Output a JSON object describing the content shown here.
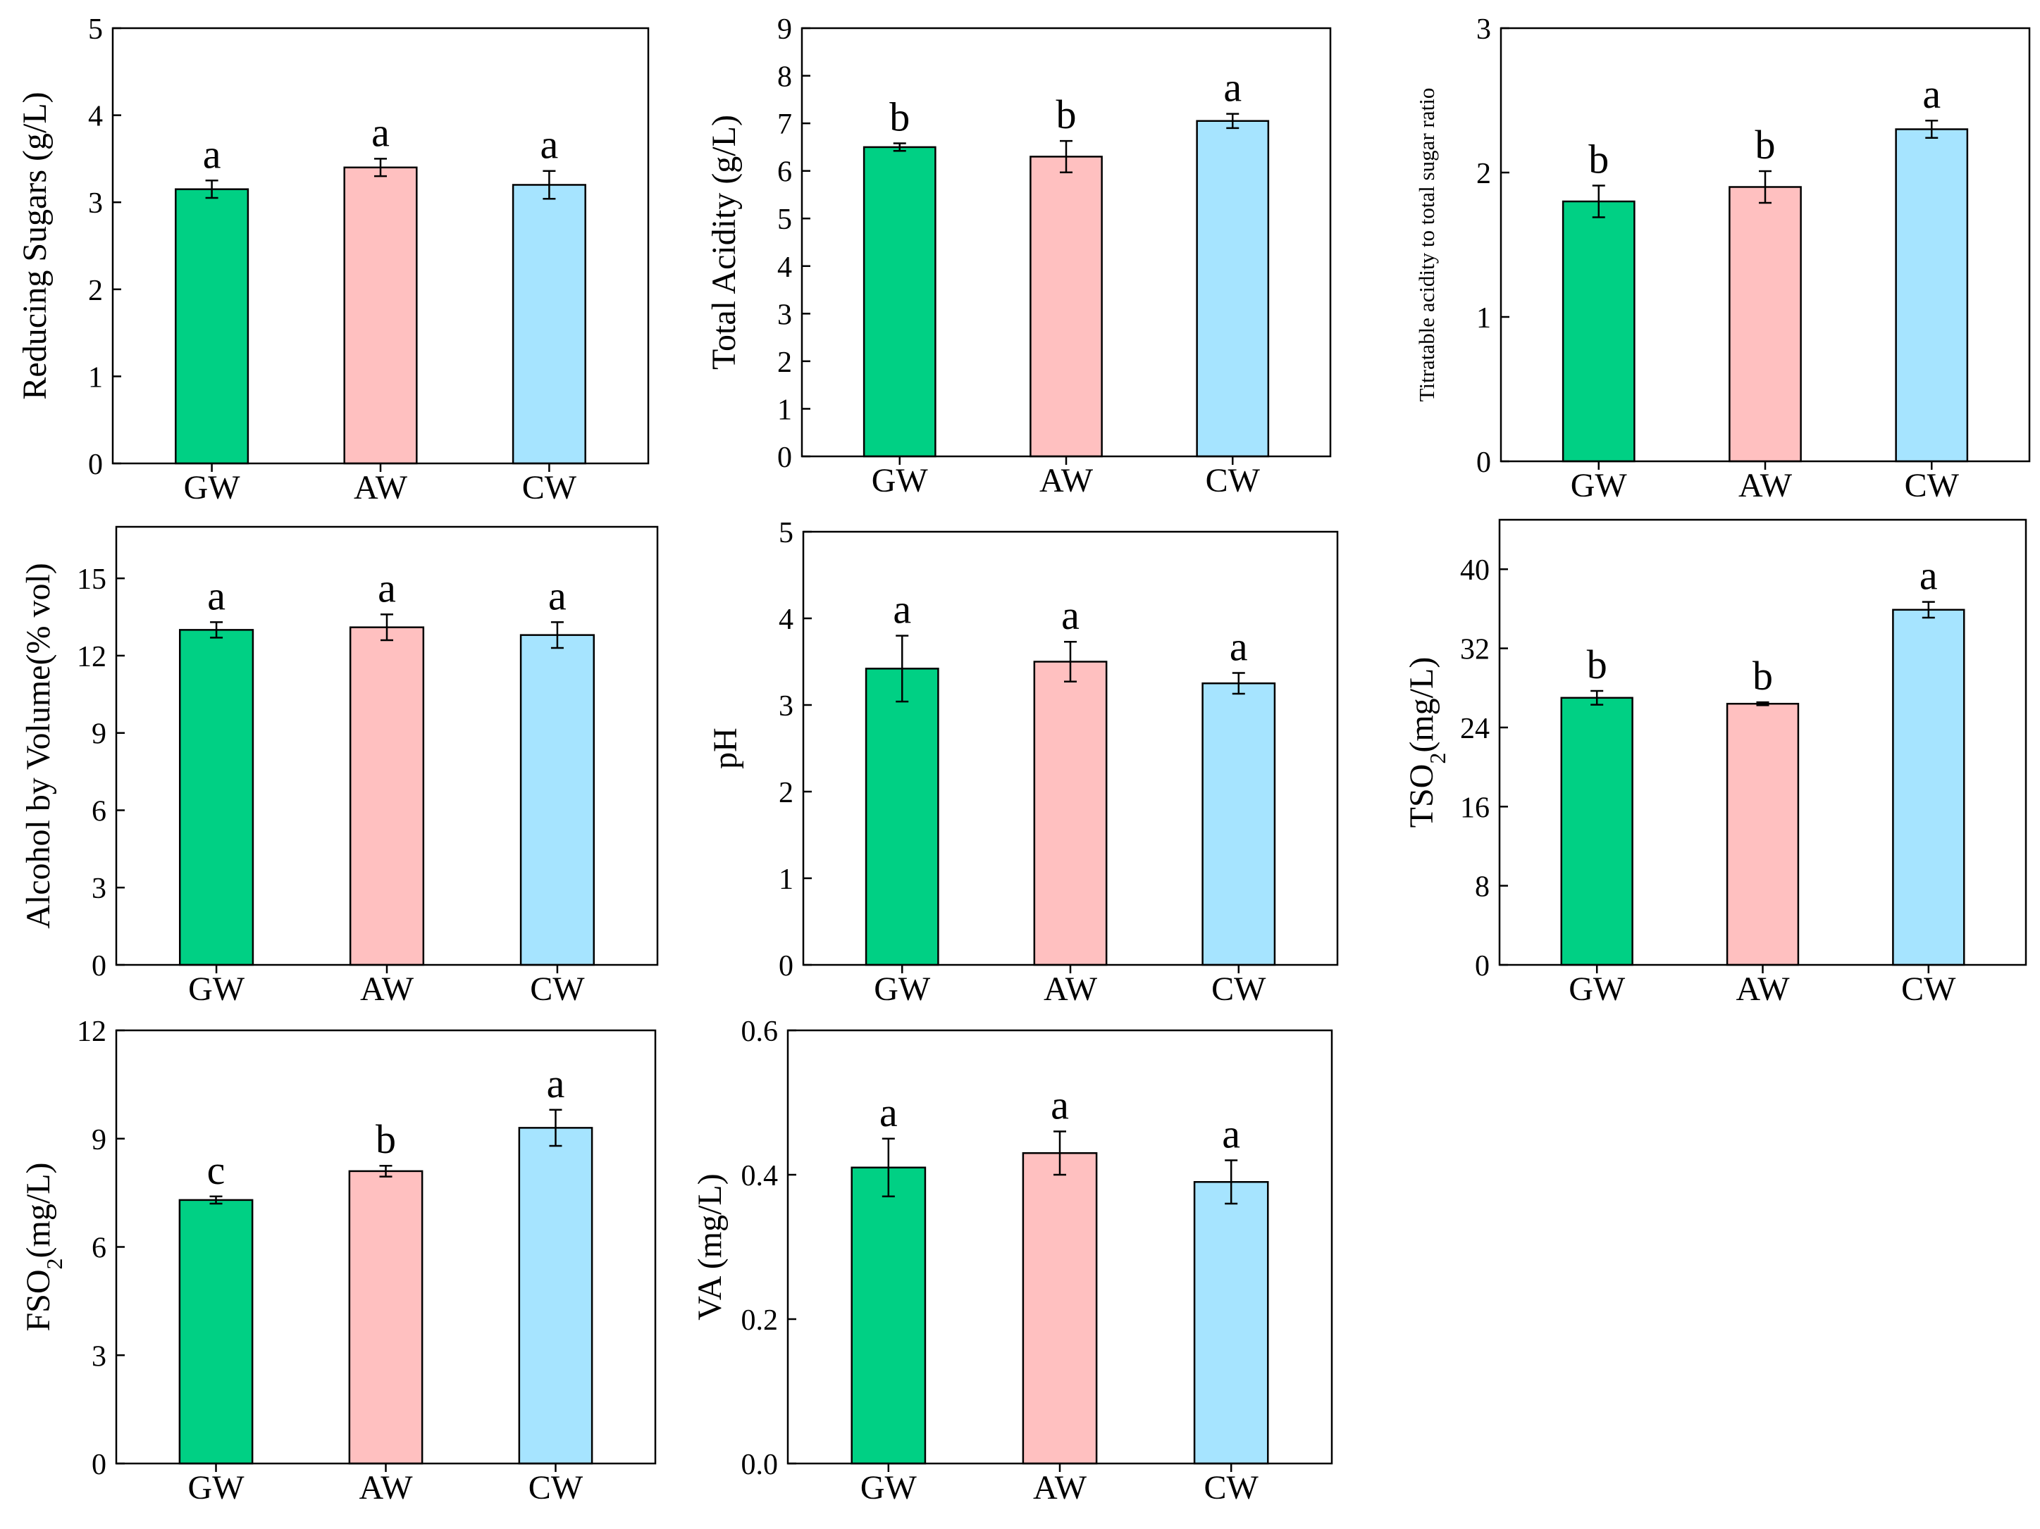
{
  "colors": {
    "GW": "#00d084",
    "AW": "#ffc0c0",
    "CW": "#a6e4ff"
  },
  "chart_data": [
    {
      "type": "bar",
      "title": "",
      "xlabel": "",
      "ylabel": {
        "text": "Reducing Sugars (g/L)"
      },
      "categories": [
        "GW",
        "AW",
        "CW"
      ],
      "values": [
        3.15,
        3.4,
        3.2
      ],
      "errors": [
        0.1,
        0.1,
        0.16
      ],
      "letters": [
        "a",
        "a",
        "a"
      ],
      "ylim": [
        0,
        5
      ],
      "yticks": [
        0,
        1,
        2,
        3,
        4,
        5
      ],
      "ytick_labels": [
        "0",
        "1",
        "2",
        "3",
        "4",
        "5"
      ]
    },
    {
      "type": "bar",
      "title": "",
      "xlabel": "",
      "ylabel": {
        "text": "Total Acidity (g/L)"
      },
      "categories": [
        "GW",
        "AW",
        "CW"
      ],
      "values": [
        6.5,
        6.3,
        7.05
      ],
      "errors": [
        0.08,
        0.33,
        0.15
      ],
      "letters": [
        "b",
        "b",
        "a"
      ],
      "ylim": [
        0,
        9
      ],
      "yticks": [
        0,
        1,
        2,
        3,
        4,
        5,
        6,
        7,
        8,
        9
      ],
      "ytick_labels": [
        "0",
        "1",
        "2",
        "3",
        "4",
        "5",
        "6",
        "7",
        "8",
        "9"
      ]
    },
    {
      "type": "bar",
      "title": "",
      "xlabel": "",
      "ylabel": {
        "text": "Titratable acidity to total sugar ratio"
      },
      "categories": [
        "GW",
        "AW",
        "CW"
      ],
      "values": [
        1.8,
        1.9,
        2.3
      ],
      "errors": [
        0.11,
        0.11,
        0.06
      ],
      "letters": [
        "b",
        "b",
        "a"
      ],
      "ylim": [
        0,
        3
      ],
      "yticks": [
        0,
        1,
        2,
        3
      ],
      "ytick_labels": [
        "0",
        "1",
        "2",
        "3"
      ]
    },
    {
      "type": "bar",
      "title": "",
      "xlabel": "",
      "ylabel": {
        "text": "Alcohol by Volume(% vol)"
      },
      "categories": [
        "GW",
        "AW",
        "CW"
      ],
      "values": [
        13.0,
        13.1,
        12.8
      ],
      "errors": [
        0.3,
        0.5,
        0.5
      ],
      "letters": [
        "a",
        "a",
        "a"
      ],
      "ylim": [
        0,
        17
      ],
      "yticks": [
        0,
        3,
        6,
        9,
        12,
        15
      ],
      "ytick_labels": [
        "0",
        "3",
        "6",
        "9",
        "12",
        "15"
      ]
    },
    {
      "type": "bar",
      "title": "",
      "xlabel": "",
      "ylabel": {
        "text": "pH"
      },
      "categories": [
        "GW",
        "AW",
        "CW"
      ],
      "values": [
        3.42,
        3.5,
        3.25
      ],
      "errors": [
        0.38,
        0.23,
        0.12
      ],
      "letters": [
        "a",
        "a",
        "a"
      ],
      "ylim": [
        0,
        5
      ],
      "yticks": [
        0,
        1,
        2,
        3,
        4,
        5
      ],
      "ytick_labels": [
        "0",
        "1",
        "2",
        "3",
        "4",
        "5"
      ]
    },
    {
      "type": "bar",
      "title": "",
      "xlabel": "",
      "ylabel": {
        "text": "TSO",
        "sub": "2",
        "after": "(mg/L)"
      },
      "categories": [
        "GW",
        "AW",
        "CW"
      ],
      "values": [
        27.0,
        26.4,
        35.9
      ],
      "errors": [
        0.7,
        0.15,
        0.8
      ],
      "letters": [
        "b",
        "b",
        "a"
      ],
      "ylim": [
        0,
        45
      ],
      "yticks": [
        0,
        8,
        16,
        24,
        32,
        40
      ],
      "ytick_labels": [
        "0",
        "8",
        "16",
        "24",
        "32",
        "40"
      ]
    },
    {
      "type": "bar",
      "title": "",
      "xlabel": "",
      "ylabel": {
        "text": "FSO",
        "sub": "2",
        "after": "(mg/L)"
      },
      "categories": [
        "GW",
        "AW",
        "CW"
      ],
      "values": [
        7.3,
        8.1,
        9.3
      ],
      "errors": [
        0.1,
        0.15,
        0.5
      ],
      "letters": [
        "c",
        "b",
        "a"
      ],
      "ylim": [
        0,
        12
      ],
      "yticks": [
        0,
        3,
        6,
        9,
        12
      ],
      "ytick_labels": [
        "0",
        "3",
        "6",
        "9",
        "12"
      ]
    },
    {
      "type": "bar",
      "title": "",
      "xlabel": "",
      "ylabel": {
        "text": "VA (mg/L)"
      },
      "categories": [
        "GW",
        "AW",
        "CW"
      ],
      "values": [
        0.41,
        0.43,
        0.39
      ],
      "errors": [
        0.04,
        0.03,
        0.03
      ],
      "letters": [
        "a",
        "a",
        "a"
      ],
      "ylim": [
        0,
        0.6
      ],
      "yticks": [
        0,
        0.2,
        0.4,
        0.6
      ],
      "ytick_labels": [
        "0.0",
        "0.2",
        "0.4",
        "0.6"
      ]
    }
  ]
}
